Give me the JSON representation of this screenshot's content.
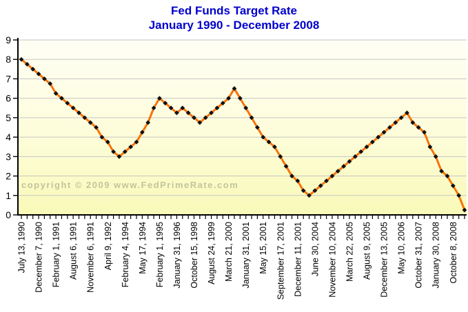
{
  "title": {
    "line1": "Fed Funds Target Rate",
    "line2": "January 1990 - December 2008"
  },
  "watermark": "copyright © 2009 www.FedPrimeRate.com",
  "colors": {
    "title": "#0000CC",
    "line": "#F87307",
    "marker": "#111111",
    "grid": "#C6C6C6",
    "axis": "#000000",
    "plot_bg_top": "#FFFEF5",
    "plot_bg_bottom": "#F9F9B8",
    "tick_label": "#000000",
    "watermark": "#80806E"
  },
  "chart_data": {
    "type": "line",
    "title": "Fed Funds Target Rate",
    "subtitle": "January 1990 - December 2008",
    "xlabel": "",
    "ylabel": "",
    "ylim": [
      0,
      9
    ],
    "yticks": [
      0,
      1,
      2,
      3,
      4,
      5,
      6,
      7,
      8,
      9
    ],
    "grid": true,
    "legend": "none",
    "series_name": "Fed Funds Target Rate (%)",
    "x_labels_shown_every": 3,
    "points": [
      [
        "July 13, 1990",
        8.0
      ],
      [
        "",
        7.75
      ],
      [
        "",
        7.5
      ],
      [
        "December 7, 1990",
        7.25
      ],
      [
        "",
        7.0
      ],
      [
        "",
        6.75
      ],
      [
        "February 1, 1991",
        6.25
      ],
      [
        "",
        6.0
      ],
      [
        "",
        5.75
      ],
      [
        "August 6, 1991",
        5.5
      ],
      [
        "",
        5.25
      ],
      [
        "",
        5.0
      ],
      [
        "November 6, 1991",
        4.75
      ],
      [
        "",
        4.5
      ],
      [
        "",
        4.0
      ],
      [
        "April 9, 1992",
        3.75
      ],
      [
        "",
        3.25
      ],
      [
        "",
        3.0
      ],
      [
        "February 4, 1994",
        3.25
      ],
      [
        "",
        3.5
      ],
      [
        "",
        3.75
      ],
      [
        "May 17, 1994",
        4.25
      ],
      [
        "",
        4.75
      ],
      [
        "",
        5.5
      ],
      [
        "February 1, 1995",
        6.0
      ],
      [
        "",
        5.75
      ],
      [
        "",
        5.5
      ],
      [
        "January 31, 1996",
        5.25
      ],
      [
        "",
        5.5
      ],
      [
        "",
        5.25
      ],
      [
        "October 15, 1998",
        5.0
      ],
      [
        "",
        4.75
      ],
      [
        "",
        5.0
      ],
      [
        "August 24, 1999",
        5.25
      ],
      [
        "",
        5.5
      ],
      [
        "",
        5.75
      ],
      [
        "March 21, 2000",
        6.0
      ],
      [
        "",
        6.5
      ],
      [
        "",
        6.0
      ],
      [
        "January 31, 2001",
        5.5
      ],
      [
        "",
        5.0
      ],
      [
        "",
        4.5
      ],
      [
        "May 15, 2001",
        4.0
      ],
      [
        "",
        3.75
      ],
      [
        "",
        3.5
      ],
      [
        "September 17, 2001",
        3.0
      ],
      [
        "",
        2.5
      ],
      [
        "",
        2.0
      ],
      [
        "December 11, 2001",
        1.75
      ],
      [
        "",
        1.25
      ],
      [
        "",
        1.0
      ],
      [
        "June 30, 2004",
        1.25
      ],
      [
        "",
        1.5
      ],
      [
        "",
        1.75
      ],
      [
        "November 10, 2004",
        2.0
      ],
      [
        "",
        2.25
      ],
      [
        "",
        2.5
      ],
      [
        "March 22, 2005",
        2.75
      ],
      [
        "",
        3.0
      ],
      [
        "",
        3.25
      ],
      [
        "August 9, 2005",
        3.5
      ],
      [
        "",
        3.75
      ],
      [
        "",
        4.0
      ],
      [
        "December 13, 2005",
        4.25
      ],
      [
        "",
        4.5
      ],
      [
        "",
        4.75
      ],
      [
        "May 10, 2006",
        5.0
      ],
      [
        "",
        5.25
      ],
      [
        "",
        4.75
      ],
      [
        "October 31, 2007",
        4.5
      ],
      [
        "",
        4.25
      ],
      [
        "",
        3.5
      ],
      [
        "January 30, 2008",
        3.0
      ],
      [
        "",
        2.25
      ],
      [
        "",
        2.0
      ],
      [
        "October 8, 2008",
        1.5
      ],
      [
        "",
        1.0
      ],
      [
        "",
        0.25
      ]
    ]
  }
}
